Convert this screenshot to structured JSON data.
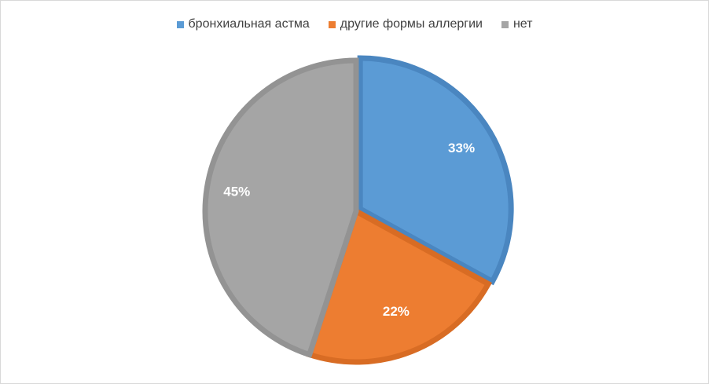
{
  "chart_data": {
    "type": "pie",
    "title": "",
    "legend_position": "top",
    "categories": [
      "бронхиальная астма",
      "другие формы аллергии",
      "нет"
    ],
    "values": [
      33,
      22,
      45
    ],
    "labels": [
      "33%",
      "22%",
      "45%"
    ],
    "colors": [
      "#5b9bd5",
      "#ed7d31",
      "#a5a5a5"
    ],
    "border_colors": [
      "#4a86c0",
      "#d86c24",
      "#939393"
    ]
  }
}
